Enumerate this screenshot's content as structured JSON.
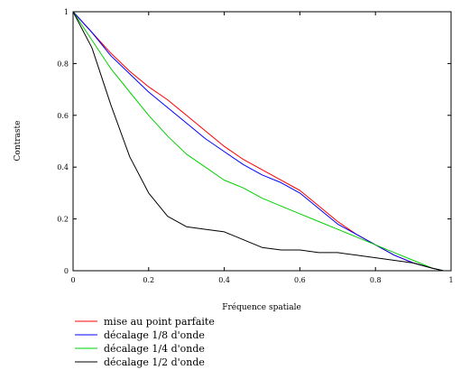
{
  "chart_data": {
    "type": "line",
    "xlabel": "Fréquence spatiale",
    "ylabel": "Contraste",
    "xlim": [
      0,
      1
    ],
    "ylim": [
      0,
      1
    ],
    "xticks": [
      0,
      0.2,
      0.4,
      0.6,
      0.8,
      1
    ],
    "yticks": [
      0,
      0.2,
      0.4,
      0.6,
      0.8,
      1
    ],
    "xtick_labels": [
      "0",
      "0.2",
      "0.4",
      "0.6",
      "0.8",
      "1"
    ],
    "ytick_labels": [
      "0",
      "0.2",
      "0.4",
      "0.6",
      "0.8",
      "1"
    ],
    "grid": false,
    "legend": "bottom-left, below plot",
    "x": [
      0,
      0.05,
      0.1,
      0.15,
      0.2,
      0.25,
      0.3,
      0.35,
      0.4,
      0.45,
      0.5,
      0.55,
      0.6,
      0.65,
      0.7,
      0.75,
      0.8,
      0.85,
      0.9,
      0.95,
      0.98
    ],
    "series": [
      {
        "name": "mise au point parfaite",
        "color": "#ff0000",
        "values": [
          1.0,
          0.92,
          0.84,
          0.77,
          0.71,
          0.66,
          0.6,
          0.54,
          0.48,
          0.43,
          0.39,
          0.35,
          0.31,
          0.25,
          0.19,
          0.14,
          0.1,
          0.06,
          0.03,
          0.01,
          0.0
        ]
      },
      {
        "name": "décalage 1/8 d'onde",
        "color": "#0000ff",
        "values": [
          1.0,
          0.92,
          0.83,
          0.76,
          0.69,
          0.63,
          0.57,
          0.51,
          0.46,
          0.41,
          0.37,
          0.34,
          0.3,
          0.24,
          0.18,
          0.14,
          0.1,
          0.06,
          0.03,
          0.01,
          0.0
        ]
      },
      {
        "name": "décalage 1/4 d'onde",
        "color": "#00d000",
        "values": [
          1.0,
          0.89,
          0.78,
          0.69,
          0.6,
          0.52,
          0.45,
          0.4,
          0.35,
          0.32,
          0.28,
          0.25,
          0.22,
          0.19,
          0.16,
          0.13,
          0.1,
          0.07,
          0.04,
          0.01,
          0.0
        ]
      },
      {
        "name": "décalage 1/2 d'onde",
        "color": "#000000",
        "values": [
          1.0,
          0.86,
          0.64,
          0.44,
          0.3,
          0.21,
          0.17,
          0.16,
          0.15,
          0.12,
          0.09,
          0.08,
          0.08,
          0.07,
          0.07,
          0.06,
          0.05,
          0.04,
          0.03,
          0.01,
          0.0
        ]
      }
    ]
  }
}
